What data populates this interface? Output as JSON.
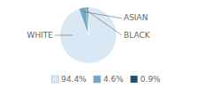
{
  "chart_data": {
    "type": "pie",
    "categories": [
      "WHITE",
      "ASIAN",
      "BLACK"
    ],
    "values": [
      94.4,
      4.6,
      0.9
    ],
    "value_labels": [
      "94.4%",
      "4.6%",
      "0.9%"
    ],
    "colors": [
      "#d9e8f5",
      "#6fa8c9",
      "#1e4d6b"
    ],
    "legend": "bottom"
  }
}
